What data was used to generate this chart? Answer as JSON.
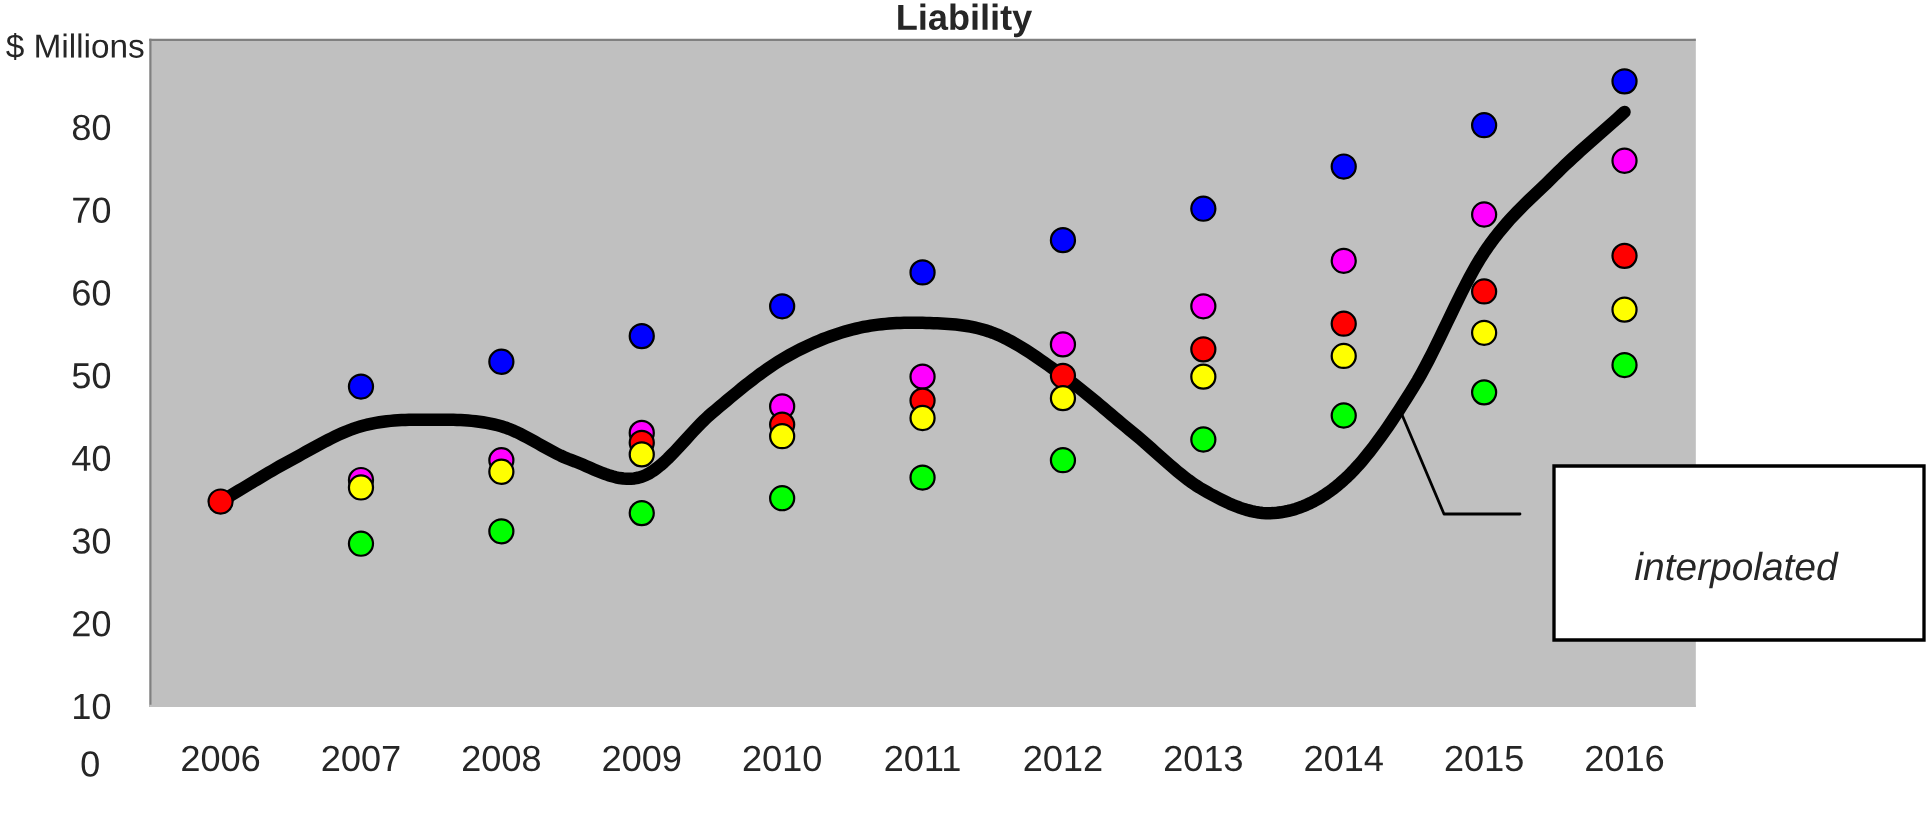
{
  "chart_data": {
    "type": "scatter",
    "title": "Liability",
    "ylabel": "$ Millions",
    "x": [
      2006,
      2007,
      2008,
      2009,
      2010,
      2011,
      2012,
      2013,
      2014,
      2015,
      2016
    ],
    "xlim": [
      2005.5,
      2016.5
    ],
    "xticks": [
      2006,
      2007,
      2008,
      2009,
      2010,
      2011,
      2012,
      2013,
      2014,
      2015,
      2016
    ],
    "ylim": [
      10,
      90.5
    ],
    "yticks": [
      10,
      20,
      30,
      40,
      50,
      60,
      70,
      80
    ],
    "grid": false,
    "legend": false,
    "series": [
      {
        "color": "#0000ff",
        "marker": "circle",
        "values": [
          null,
          48.6,
          51.6,
          54.7,
          58.3,
          62.4,
          66.3,
          70.1,
          75.2,
          80.2,
          85.5
        ]
      },
      {
        "color": "#ff00ff",
        "marker": "circle",
        "values": [
          null,
          37.3,
          39.7,
          43.0,
          46.2,
          49.8,
          53.7,
          58.3,
          63.8,
          69.4,
          75.9
        ]
      },
      {
        "color": "#ff0000",
        "marker": "circle",
        "values": [
          34.7,
          null,
          null,
          41.8,
          44.0,
          46.9,
          49.9,
          53.1,
          56.2,
          60.1,
          64.4
        ]
      },
      {
        "color": "#ffff00",
        "marker": "circle",
        "values": [
          null,
          36.4,
          38.3,
          40.4,
          42.6,
          44.8,
          47.2,
          49.8,
          52.3,
          55.1,
          57.9
        ]
      },
      {
        "color": "#00ff00",
        "marker": "circle",
        "values": [
          null,
          29.6,
          31.1,
          33.3,
          35.1,
          37.6,
          39.7,
          42.2,
          45.1,
          47.9,
          51.2
        ]
      },
      {
        "type": "line",
        "color": "#000000",
        "line_style": "solid",
        "x": [
          2006,
          2006.5,
          2007,
          2007.5,
          2008,
          2008.5,
          2009,
          2009.5,
          2010,
          2010.5,
          2011,
          2011.5,
          2012,
          2012.5,
          2013,
          2013.5,
          2014,
          2014.5,
          2015,
          2015.5,
          2016
        ],
        "values": [
          34.7,
          39.7,
          43.8,
          44.6,
          43.8,
          39.7,
          37.7,
          45.4,
          51.9,
          55.5,
          56.3,
          55.1,
          49.9,
          43.0,
          36.1,
          33.3,
          37.3,
          48.6,
          64.8,
          74.1,
          81.8
        ]
      }
    ],
    "annotations": [
      "interpolated",
      "0"
    ]
  }
}
